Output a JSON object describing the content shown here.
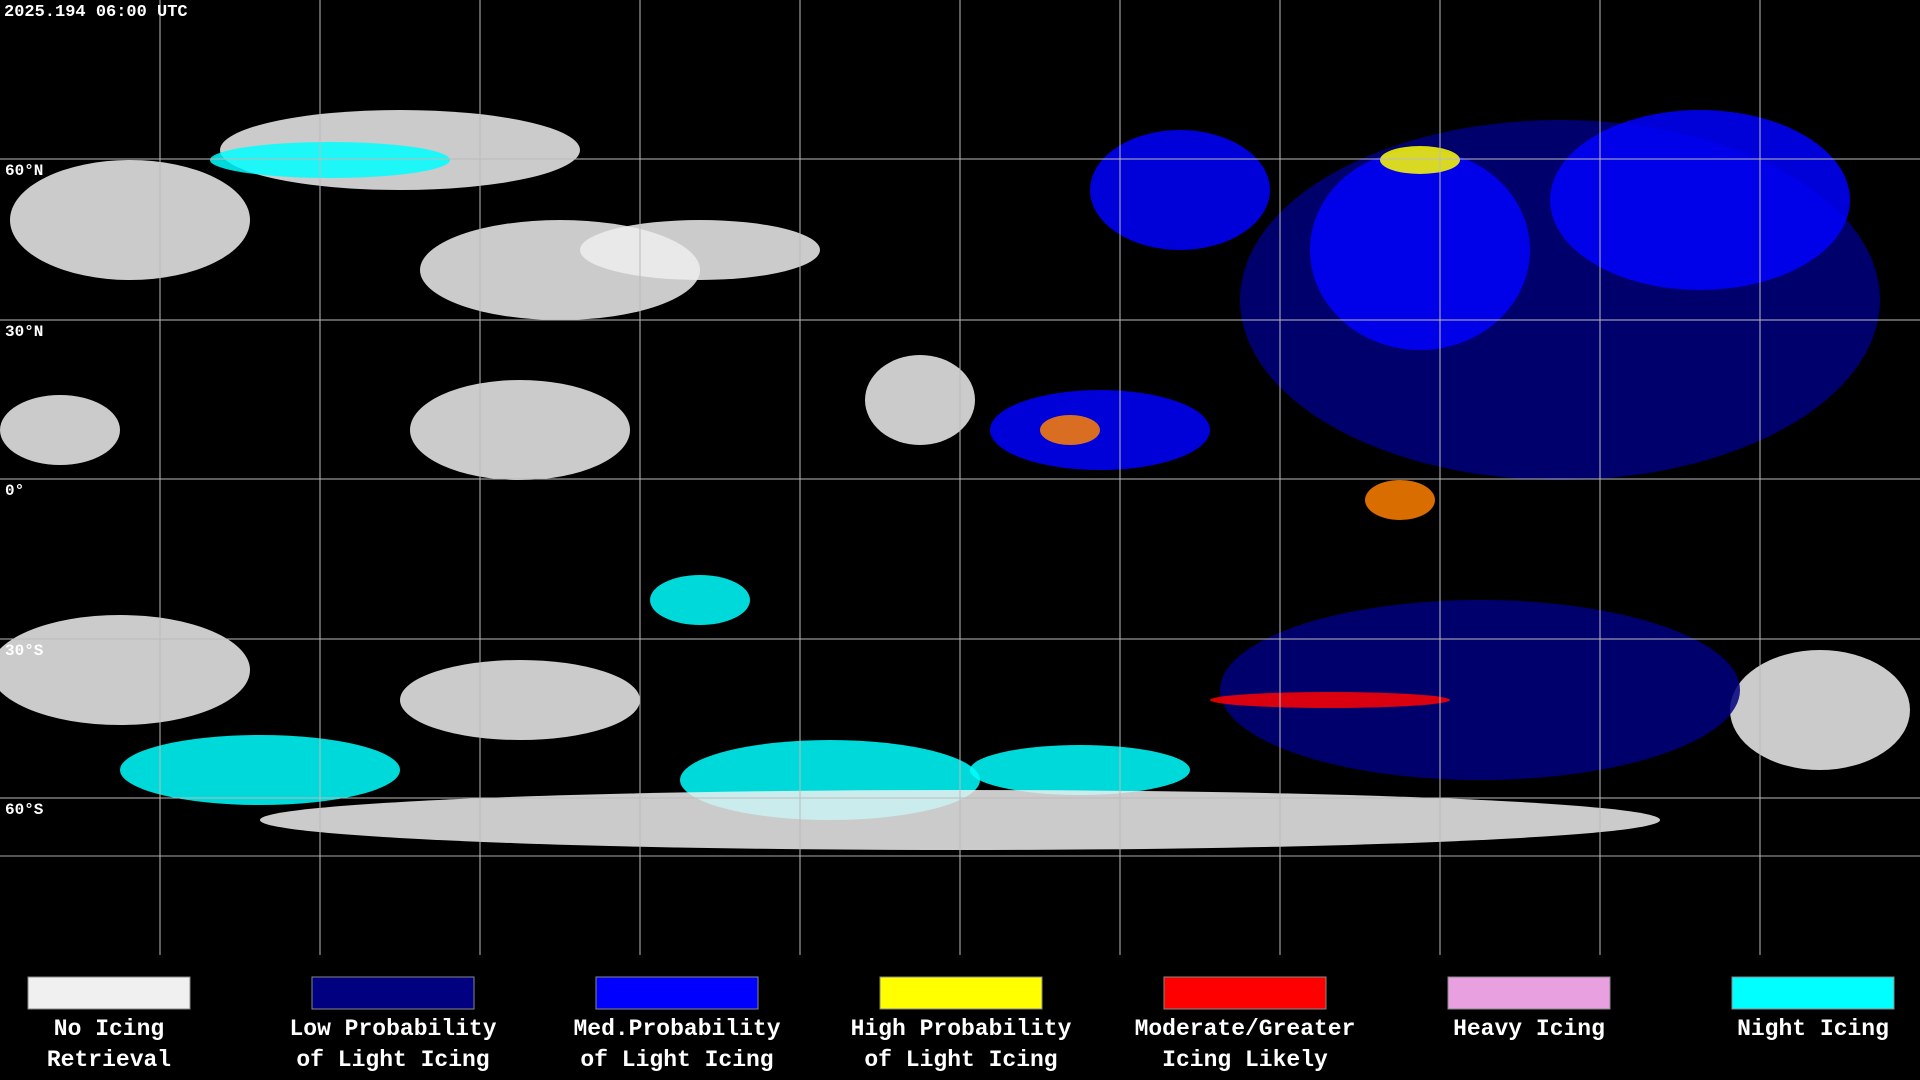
{
  "timestamp": "2025.194 06:00 UTC",
  "latitude_labels": [
    "60°N",
    "30°N",
    "0°",
    "30°S",
    "60°S"
  ],
  "legend": [
    {
      "color": "#f0f0f0",
      "lines": [
        "No Icing",
        "Retrieval"
      ]
    },
    {
      "color": "#000080",
      "lines": [
        "Low Probability",
        "of Light Icing"
      ]
    },
    {
      "color": "#0000ff",
      "lines": [
        "Med.Probability",
        "of Light Icing"
      ]
    },
    {
      "color": "#ffff00",
      "lines": [
        "High Probability",
        "of Light Icing"
      ]
    },
    {
      "color": "#ff0000",
      "lines": [
        "Moderate/Greater",
        "Icing Likely"
      ]
    },
    {
      "color": "#e8a0e0",
      "lines": [
        "Heavy Icing"
      ]
    },
    {
      "color": "#00ffff",
      "lines": [
        "Night Icing"
      ]
    }
  ]
}
